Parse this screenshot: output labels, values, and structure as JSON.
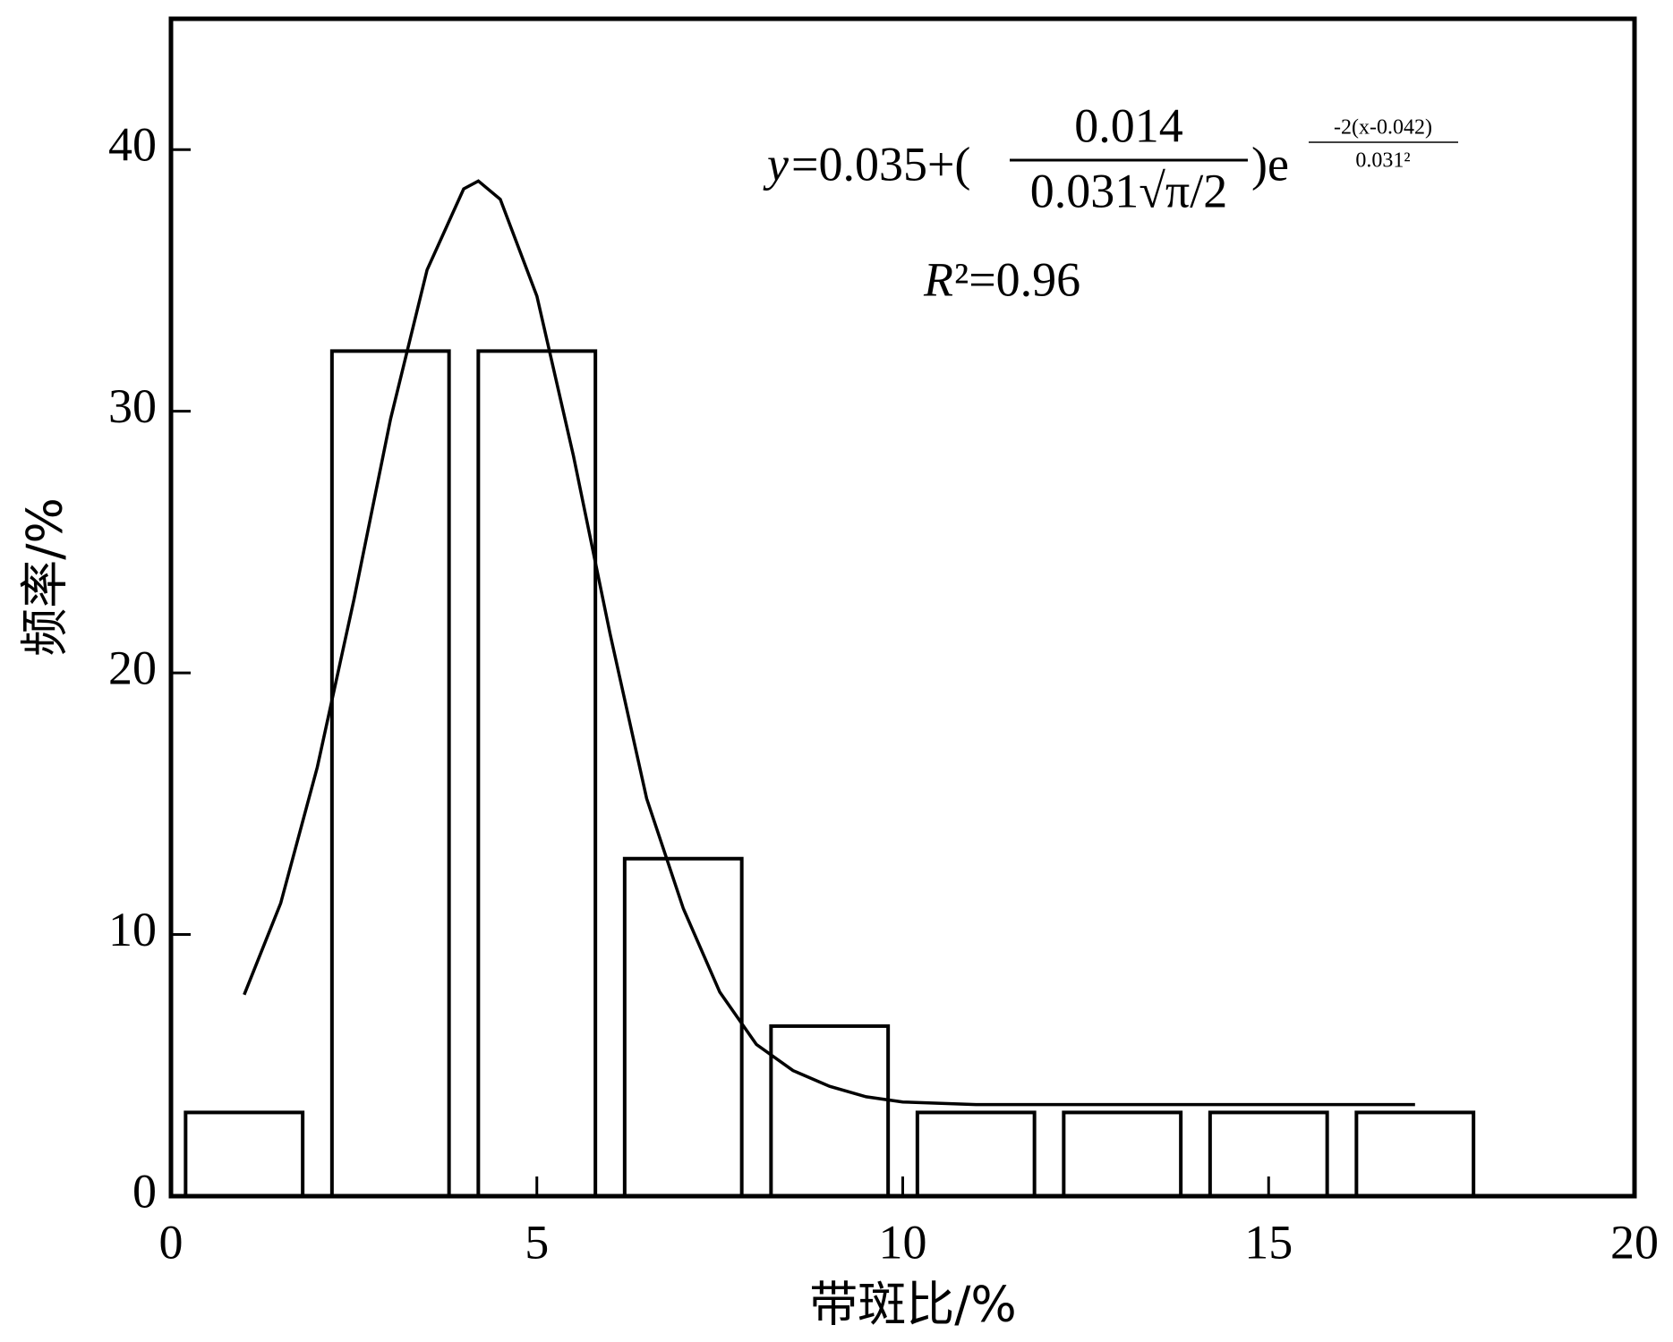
{
  "chart_data": {
    "type": "bar",
    "x_label": "带斑比/%",
    "y_label": "频率/%",
    "xlim": [
      0,
      20
    ],
    "ylim": [
      0,
      45
    ],
    "xticks": [
      0,
      5,
      10,
      15,
      20
    ],
    "yticks": [
      0,
      10,
      20,
      30,
      40
    ],
    "series": [
      {
        "type": "bar",
        "color": "#000000",
        "x": [
          1,
          3,
          5,
          7,
          9,
          11,
          13,
          15,
          17
        ],
        "values": [
          3.2,
          32.3,
          32.3,
          12.9,
          6.5,
          3.2,
          3.2,
          3.2,
          3.2
        ]
      },
      {
        "type": "line",
        "color": "#000000",
        "x": [
          1,
          1.5,
          2,
          2.5,
          3,
          3.5,
          4,
          4.2,
          4.5,
          5,
          5.5,
          6,
          6.5,
          7,
          7.5,
          8,
          8.5,
          9,
          9.5,
          10,
          11,
          12,
          13,
          14,
          15,
          16,
          17
        ],
        "values": [
          7.7,
          11.2,
          16.4,
          22.8,
          29.7,
          35.4,
          38.5,
          38.8,
          38.1,
          34.4,
          28.3,
          21.5,
          15.2,
          11.0,
          7.8,
          5.8,
          4.8,
          4.2,
          3.8,
          3.6,
          3.5,
          3.5,
          3.5,
          3.5,
          3.5,
          3.5,
          3.5
        ]
      }
    ],
    "equation": {
      "lhs": "y",
      "main": "=0.035+(",
      "numerator": "0.014",
      "denominator": "0.031√π/2",
      "tail": ")e",
      "exp_numerator": "-2(x-0.042)",
      "exp_denominator": "0.031²"
    },
    "r_squared": {
      "symbol": "R",
      "text": "²=0.96"
    }
  }
}
